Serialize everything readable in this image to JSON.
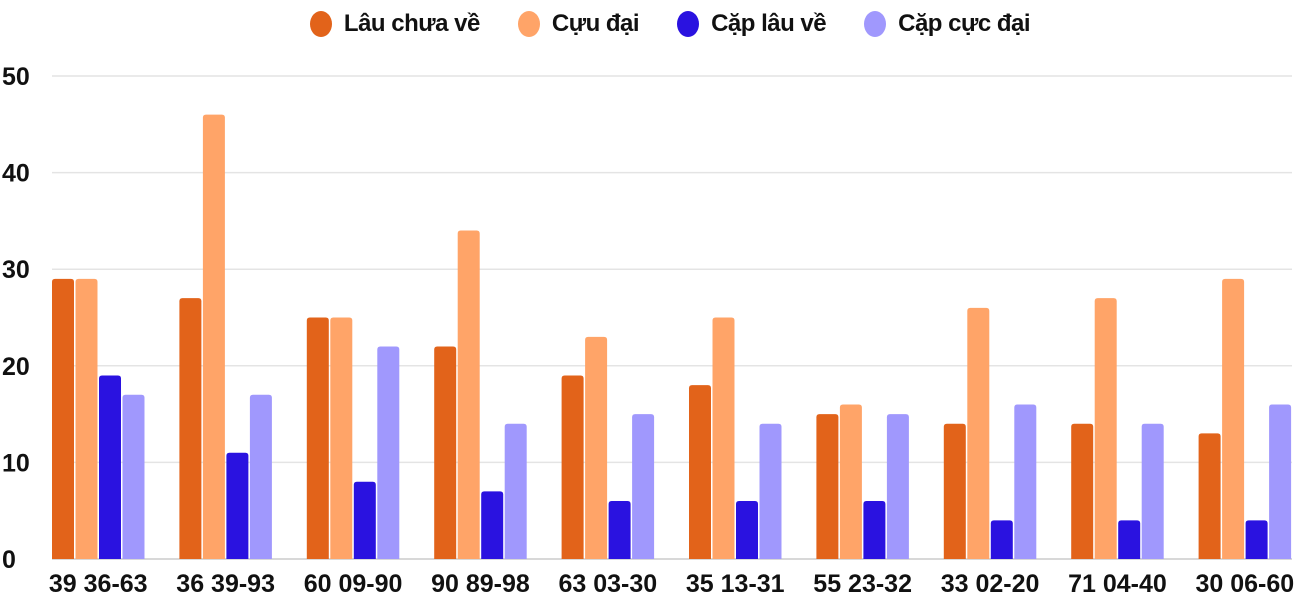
{
  "chart_data": {
    "type": "bar",
    "categories": [
      "39 36-63",
      "36 39-93",
      "60 09-90",
      "90 89-98",
      "63 03-30",
      "35 13-31",
      "55 23-32",
      "33 02-20",
      "71 04-40",
      "30 06-60"
    ],
    "series": [
      {
        "name": "Lâu chưa về",
        "color": "#e2631a",
        "values": [
          29,
          27,
          25,
          22,
          19,
          18,
          15,
          14,
          14,
          13
        ]
      },
      {
        "name": "Cựu đại",
        "color": "#ffa468",
        "values": [
          29,
          46,
          25,
          34,
          23,
          25,
          16,
          26,
          27,
          29
        ]
      },
      {
        "name": "Cặp lâu về",
        "color": "#2a12e0",
        "values": [
          19,
          11,
          8,
          7,
          6,
          6,
          6,
          4,
          4,
          4
        ]
      },
      {
        "name": "Cặp cực đại",
        "color": "#a098fd",
        "values": [
          17,
          17,
          22,
          14,
          15,
          14,
          15,
          16,
          14,
          16
        ]
      }
    ],
    "ylim": [
      0,
      50
    ],
    "yticks": [
      0,
      10,
      20,
      30,
      40,
      50
    ],
    "grid": true,
    "legend": "top",
    "title": "",
    "xlabel": "",
    "ylabel": ""
  }
}
